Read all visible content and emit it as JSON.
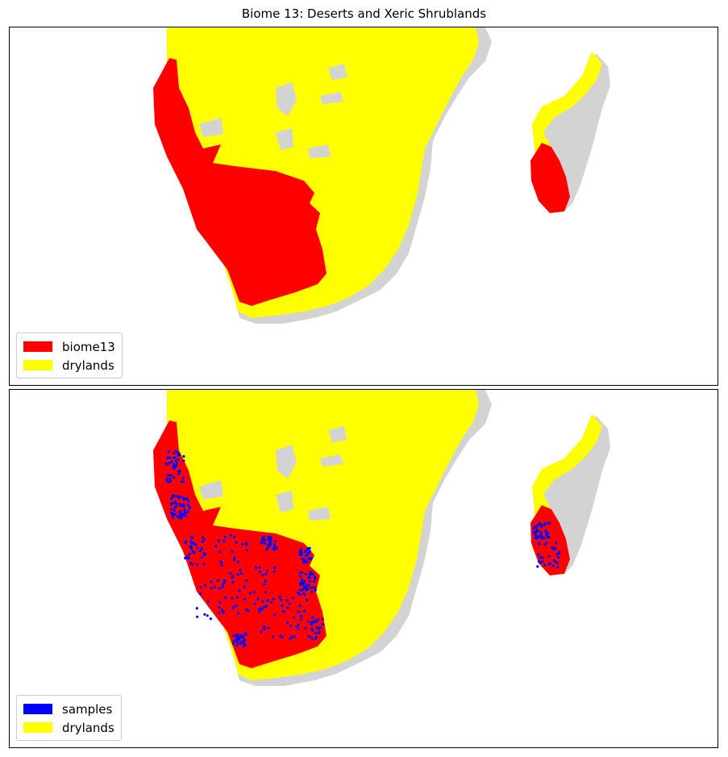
{
  "title": "Biome 13: Deserts and Xeric Shrublands",
  "colors": {
    "land": "#d3d3d3",
    "drylands": "#ffff00",
    "biome": "#ff0000",
    "samples": "#0000ff"
  },
  "panels": [
    {
      "legend": [
        {
          "label": "biome13",
          "color": "#ff0000"
        },
        {
          "label": "drylands",
          "color": "#ffff00"
        }
      ]
    },
    {
      "legend": [
        {
          "label": "samples",
          "color": "#0000ff"
        },
        {
          "label": "drylands",
          "color": "#ffff00"
        }
      ]
    }
  ]
}
